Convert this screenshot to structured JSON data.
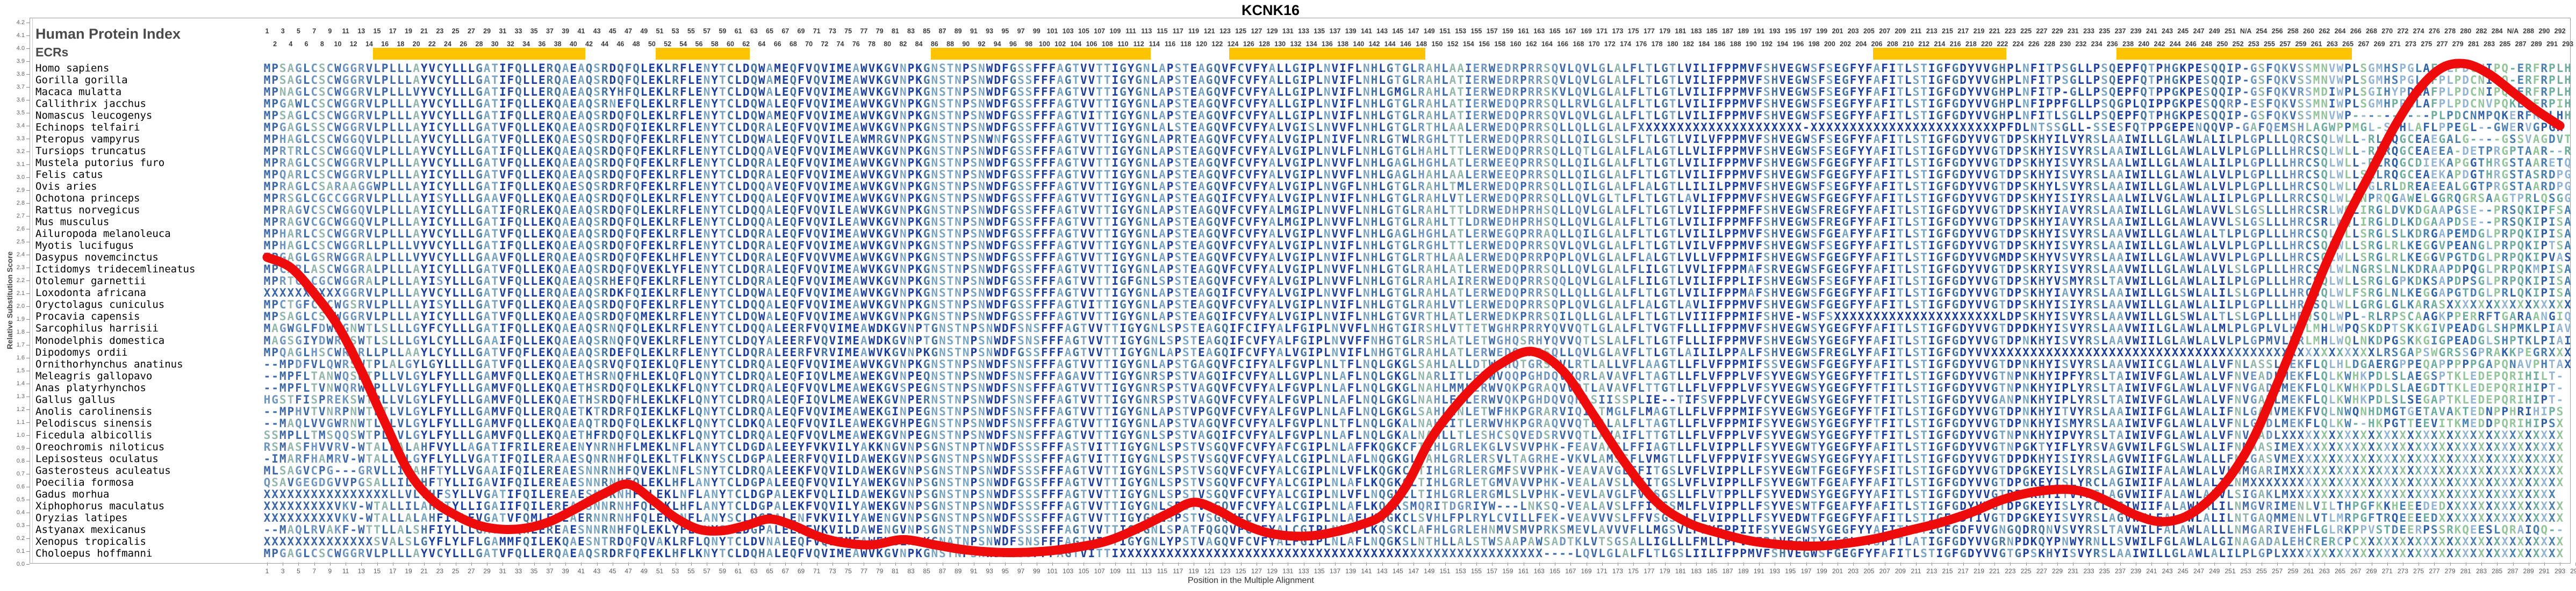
{
  "title": "KCNK16",
  "header": {
    "index_label": "Human Protein Index",
    "ecr_label": "ECRs"
  },
  "axes": {
    "y_label": "Relative Substitution Score",
    "x_label": "Position in the Multiple Alignment",
    "y_min": 0.0,
    "y_max": 4.2,
    "y_step": 0.1,
    "x_min": 1,
    "x_max": 295
  },
  "ruler": {
    "na_label": "N/A",
    "na_insert_column": 253,
    "na_replaced_number": 286,
    "total_columns": 294
  },
  "ecr_bars": [
    {
      "start": 15,
      "end": 41
    },
    {
      "start": 51,
      "end": 62
    },
    {
      "start": 86,
      "end": 113
    },
    {
      "start": 124,
      "end": 148
    },
    {
      "start": 206,
      "end": 222
    },
    {
      "start": 237,
      "end": 266
    }
  ],
  "colors": {
    "curve_red": "#ee0b0b",
    "ecr_yellow": "#fec301",
    "navy": "#1c3e9c",
    "steel": "#49779f",
    "pale_blue": "#7aa5c2",
    "tier1_dark": "#3b67a8",
    "tier1_mid": "#7096c0",
    "tier1_teal": "#93b7ab",
    "pastel": [
      "#93c49a",
      "#6fad9e",
      "#4a80b1",
      "#2f5fa6",
      "#93b4d2"
    ]
  },
  "chart_data": {
    "type": "line",
    "title": "KCNK16",
    "xlabel": "Position in the Multiple Alignment",
    "ylabel": "Relative Substitution Score",
    "xlim": [
      1,
      295
    ],
    "ylim": [
      0,
      4.25
    ],
    "grid": false,
    "series_name": "Relative Substitution Score",
    "points": [
      [
        1,
        2.38
      ],
      [
        4,
        2.3
      ],
      [
        7,
        2.1
      ],
      [
        10,
        1.85
      ],
      [
        13,
        1.5
      ],
      [
        16,
        1.1
      ],
      [
        19,
        0.72
      ],
      [
        22,
        0.5
      ],
      [
        25,
        0.38
      ],
      [
        28,
        0.3
      ],
      [
        31,
        0.27
      ],
      [
        34,
        0.28
      ],
      [
        37,
        0.33
      ],
      [
        40,
        0.42
      ],
      [
        44,
        0.55
      ],
      [
        47,
        0.62
      ],
      [
        50,
        0.5
      ],
      [
        53,
        0.36
      ],
      [
        56,
        0.27
      ],
      [
        59,
        0.26
      ],
      [
        62,
        0.3
      ],
      [
        65,
        0.35
      ],
      [
        68,
        0.3
      ],
      [
        71,
        0.22
      ],
      [
        74,
        0.17
      ],
      [
        78,
        0.15
      ],
      [
        82,
        0.19
      ],
      [
        86,
        0.15
      ],
      [
        90,
        0.11
      ],
      [
        95,
        0.09
      ],
      [
        100,
        0.1
      ],
      [
        104,
        0.13
      ],
      [
        108,
        0.18
      ],
      [
        112,
        0.28
      ],
      [
        116,
        0.4
      ],
      [
        119,
        0.48
      ],
      [
        122,
        0.42
      ],
      [
        125,
        0.32
      ],
      [
        128,
        0.25
      ],
      [
        131,
        0.22
      ],
      [
        134,
        0.22
      ],
      [
        137,
        0.25
      ],
      [
        140,
        0.3
      ],
      [
        143,
        0.38
      ],
      [
        146,
        0.6
      ],
      [
        149,
        0.95
      ],
      [
        152,
        1.2
      ],
      [
        155,
        1.4
      ],
      [
        158,
        1.55
      ],
      [
        162,
        1.65
      ],
      [
        166,
        1.5
      ],
      [
        170,
        1.15
      ],
      [
        174,
        0.78
      ],
      [
        178,
        0.48
      ],
      [
        182,
        0.32
      ],
      [
        186,
        0.24
      ],
      [
        190,
        0.18
      ],
      [
        194,
        0.15
      ],
      [
        198,
        0.14
      ],
      [
        202,
        0.16
      ],
      [
        206,
        0.2
      ],
      [
        210,
        0.26
      ],
      [
        214,
        0.32
      ],
      [
        218,
        0.4
      ],
      [
        222,
        0.5
      ],
      [
        226,
        0.56
      ],
      [
        230,
        0.58
      ],
      [
        233,
        0.55
      ],
      [
        236,
        0.47
      ],
      [
        239,
        0.38
      ],
      [
        242,
        0.33
      ],
      [
        245,
        0.36
      ],
      [
        248,
        0.48
      ],
      [
        251,
        0.68
      ],
      [
        254,
        0.98
      ],
      [
        257,
        1.4
      ],
      [
        260,
        1.85
      ],
      [
        263,
        2.3
      ],
      [
        266,
        2.7
      ],
      [
        269,
        3.05
      ],
      [
        272,
        3.4
      ],
      [
        275,
        3.68
      ],
      [
        278,
        3.85
      ],
      [
        281,
        3.88
      ],
      [
        284,
        3.8
      ],
      [
        287,
        3.66
      ],
      [
        290,
        3.52
      ],
      [
        293,
        3.4
      ]
    ]
  },
  "species": [
    "Homo sapiens",
    "Gorilla gorilla",
    "Macaca mulatta",
    "Callithrix jacchus",
    "Nomascus leucogenys",
    "Echinops telfairi",
    "Pteropus vampyrus",
    "Tursiops truncatus",
    "Mustela putorius furo",
    "Felis catus",
    "Ovis aries",
    "Ochotona princeps",
    "Rattus norvegicus",
    "Mus musculus",
    "Ailuropoda melanoleuca",
    "Myotis lucifugus",
    "Dasypus novemcinctus",
    "Ictidomys tridecemlineatus",
    "Otolemur garnettii",
    "Loxodonta africana",
    "Oryctolagus cuniculus",
    "Procavia capensis",
    "Sarcophilus harrisii",
    "Monodelphis domestica",
    "Dipodomys ordii",
    "Ornithorhynchus anatinus",
    "Meleagris gallopavo",
    "Anas platyrhynchos",
    "Gallus gallus",
    "Anolis carolinensis",
    "Pelodiscus sinensis",
    "Ficedula albicollis",
    "Oreochromis niloticus",
    "Lepisosteus oculatus",
    "Gasterosteus aculeatus",
    "Poecilia formosa",
    "Gadus morhua",
    "Xiphophorus maculatus",
    "Oryzias latipes",
    "Astyanax mexicanus",
    "Xenopus tropicalis",
    "Choloepus hoffmanni"
  ],
  "sequences": [
    "MPSAGLCSCWGGRVLPLLLAYVCYLLLGATIFQLLERQAEAQSRDQFQLEKLRFLENYTCLDQWAMEQFVQVIMEAWVKGVNPKGNSTNPSNWDFGSSFFFAGTVVTTIGYGNLAPSTEAGQVFCVFYALLGIPLNVIFLNHLGTGLRAHLAAIERWEDRPRRSQVLQVLGLALFLTLGTLVILIFPPMVFSHVEGWSFSEGFYFAFITLSTIGFGDYVVGHPLNFITPSGLLPSQEPFQTPHGKPESQQIP-GSFQKVSSMNVWPLSGMHSPGLAFPLPDCNIPQ-ERFRPLH",
    "MPSAGLCSCWGGRVLPLLLAYVCYLLLGATIFQLLERQAEAQSRDQFQLEKLRFLENYTCLDQWAMEQFVQVIMEAWVKGVNPKGNSTNPSNWDFGSSFFFAGTVVTTIGYGNLAPSTEAGQVFCVFYALLGIPLNVIFLNHLGTGLRAHLATIERWEDRPRRSQVLQVLGLALFLTLGTLVILIFPPMVFSHVEGWSFSEGFYFAFITLSTIGFGDYVVGHPLNFITPSGLLPSQEPFQTPHGKPESQQIP-GSFQKVSSMNVWPLSGMHSPGLAFPLPDCNIPQ-ERFRPLH",
    "MPNAGLCSCWGGRVLPLLLVYVCYLLLGATIFQLLERQAEAQSRYHFQLEKLRFLENYTCLDQWALEQFVQVIMEAWVKGVNPKGNSTNPSNWDFGSSFFFAGTVVTTIGYGNLAPSTEAGQVFCVFYALLGIPLNVIFLNHLGMGLRAHLATIERWEDRPRRSKVLQVLGLALFLTLGTLVILIFPPMVFSHVEGWSFSEGFYFAFITLSTIGFGDYVVGHPLNFITP-GLLPSQEPFQTPPGKPESQQIP-GSFQKVRSMDIWPLSGIHYPDLAFPLPDCNIPQKERFRPLH",
    "MPGAWLCSCWGGRVLPLLLAYVCYLLLGATIFQLLEKQAEAQSRNEFQLEKLRFLENYTCLDQWALEQFVQVIMEAWVKGVNPKGNSTNPSNWDFGSSFFFAGTVVTTIGYGNLAPSTEAGQVFCVFYALLGIPLNVIFLNHLGTGLRAHLATIERWEDQPRRSQLLRVLGLALFLTLGTLVILIFPPMVFSHVEGWSFSEGFYFAFITLSTIGFGDYVVGHPLNFIPPFGLLPSQGPLQIPPGKPESQQRP-ESFQKVSSMNIWPLSGMHPPGLAFPLPDCNVPQKERFRPIH",
    "MPSAGLCSCWGGRVLPLLLAYVCYLLLGATIFQLLERQAEAQSRDQFQLEKLRFLENYTCLDQWAMEQFVQVIMEAWVKGVNPKGNSTNPSNWDFGSSFFFAGTVITTIGYGNLAPSTEAGQVFCVFYALLGIPLNVIFLNHLGTGLRAHLATIERWEDQPRRSQVLQVLGLALFLTLGTLVILIFPPMVFSHVEGWSFSEGFYFAFITLSTIGFGDYVVGHPLNFITLSGLLPSQEPFQTPHGKPESQQIP-GSFQKVSSMNVWP----------PLPDCNMPQKERFRPLHH",
    "MPGAGLSSCWGGRVLPLLLAYICYLLLGATVFQLLEKQAEAQSRDQFQIEKLRFLENYTCLDQRALEQFVQVIMEAWVKGVNPKGNSTNPSNWDFGSSFFFAGTVVTTIGYGNLALSTEAGQVFCVFYALVGISLNVVFLNHLGTGLRTHLAALERWEDQPRRSQLLQLLGLALFXXXXXXXXXXXXXXXXXXXXX-XXXXXXXXXXXXXXXXXXXXXXXXPFDLNTSSGLL-SSESFQTPPGEPENQQVP-GAFQEMSHLAGWPPMGL-SPHLAFLPPEGL--GWERVGPGH",
    "MPHAGLCSCWGGQVLPLLLAYVCYLLLGATVFQLLEKQAESQSRDQFQFEKLRFLENYTCLDQWALEQFVQVILEAWMRGVNPKGNSTNPSNWNFGSSFFFAGTVVTTIGYGNLAPRTEAGQVFCVFYALVGIPLNIVFLNRLGTWLRGHLTTLERWEDQPRRSQLLQILGLSLFLTLGTLVILVFPPMVFSHVEGWSFSEGFYFAFITLSTIGFGDYVVGTDPSKHYILVYRSLAAIWILLGLAWLALILPLGPLLLQRCSQLWLL-RLRQGCEAEGALG----GSSVAGDVT",
    "MPRTRLCSCWGGQVLPLLLAYVCYLLLGATIFQLLEKQAEAQSRDQFQFEKLRFLENYTCLDQQAVEQFVQVIMEAWVKGVNPKGNSTNPSNWDFGSSFFFAGTVVTTIGYGNLAPSTEAGQVFCVFYALVGIPLNVLFLNHLGTGLHAHLTTLERWEDQPRRSQLLQTLGLALFLALGTLLVLIFPPMVFSHVEGWSFSEGFYYAFITLSTIGFGDYVVGTDPSKHYISVYRSLAAIWILLGLAWLALVLPLGPLLLHRCSQLWLL-RLRQGCEAEEA-DETPRGPTAAR--R",
    "MPRAGLCSCWGGRVLPLLLAYVCYLLLGATVFQLLEKQAEAQSRDQFQFEKLRFLENYTCLDQRALEQFVQVIMEAWVKGVNPKGNSTNPSNWDFGSSFFFAGTVVTTIGYGNLAPSTEAGQVFCVFYALVGIPLNVVFLNHLGAGLHGHLATLERWEEQPRRSQLLQILGLALFLTLGTLVILIFPPMVFSHVEGWSFGEGFYFAFITLSTIGFGDYVVGTDPSKHYISVYRSLAALWILLGLAWLALILPLGPLLLHRCSQLWLL-RLRQGCDIEKAPGGTHRGSTAARETQ",
    "MPQARLCSCWGGRVLPLLLAYICYLLLGATVFQLLEKQAEAQSRDQFQFEKLRFLENYTCLDQRALEQFVQVIMEAWVKGVNPKGNSTNPSNWDFGSSFFFAGTVVTTIGYGNLAPSTEAGQVFCVFYALVGIPLNVVFLNHLGAGLHAHLAALERWEEQPRRSQLLQILGLALFLTLGTLVILIFPPMVFSHVEGWSFGEGFYFAFITLSTIGFGDYVVGTDPSKHYISVYRSLAAIWILLGLAWLALVLPLGPLLLHRCSQLWLLSRLRQGCEAEKAPDGTHRGSTASRDPG",
    "MPRAGLCSARAAGGWPLLLAYICYLLLGATIFQLLEKQAESQSRDRFQFEKLRFLENYTCLDQQAVEQFVQVIMEAWVKGVNPKGNSTNPSNWDFGSSFFFAGTVVTTIGYGNLAPSTEAGQVFCVFYALVGIPLNVGFLNHLGTGLRAHLTMLERWEDQPRRSQLLQILGLALFLALGTLLILILPPMVFSHVEGWSFSEGFYFAFITLSTIGFGDYVVGTDPSKHYLSVYRSLAAIWILLGLAWLALVLPLGPLLLHRCSQLWLL-GLRLDREAEEALGGTPRGSTAARDPG",
    "MPRSGLCGCCGGRVLPLLLAYISYLLLGAAVFQLLEKQAEAQSRDQFQLEKLRFLENYTCLDQQALEQFVQVIMEAWVKGVNPKGNSTNPSNWDFGSSFFFAGTVVTTIGYGNLAPSTEAGQIFCVFYALVGIPLNVIFLNHLGTGLRAHLVTLERWEDQPRRSQLLQVLGLTLFLTLGTLAVLIFPPMVFSHVEGWSFGEGFYFAFITLSTIGFGDYVVGTDPSKHYISIYRSLAALWILVGLAWLALILPLGPLLLRRCSQLWLLNPRQGAWELGGRQGRSAAGTPRLQSGG",
    "MPRAGVCSCWGGQVLPLLLAYICYLLLGATIFQRLEKQAEAQSRDQFQLEKLRFLENYTCLDQQALEQFVQVILEAWVKGVNPKGNSTNPSNWDFGSSFFFAGTVVTTIGYGNLAPSTEAGQVFCVFYALMGIPLNVVFLNHLGTGLRAHLTTLDRWEDHPRHSQLLQVLGLALFLTLGTLVILIFPPMFFSHVEGWSFREGFYFAFITLSTIGFGDYVVGTDPSKHYIAVYRSLAAIWILLGLAWLAVVLSLGSLLLHRCSRLWQLIRGLDVKDGAAPGSE--PRSQKIPFSA",
    "MPRAGVCGCWGGQVLPLLLAYICYLLLGATIFQLLEKQAEAQSRDQFQLEKLRFLENYTCLDQQALEQFVQVILEAWVKGVNPKGNSTNPSNWDFGSSFFFAGTVVTTIGYGNLAPSTEAGQVFCVFYALMGIPLNVVFLNHLGTGLRAHLTTLDRWEDHPRHSQLLQVLGLALFLTLGTLVILIFPPMFFSHVEGWSFREGFYFAFITLSTIGFGDYVVGTDPSKHYIAVYRSLAAIWILLGLAWLAVVLSLGSLLLHRCSRLWQLIRGLDLKDGAAPDSE--PRSQKIPISA",
    "MPHARLCSCWGGRVLPLLLAYVCYLLLGATVFQLLEKQAEAQSRDQFQFEKLRFLENYTCLDQRALEQFVQVIMEAWVKGVNPKGNSTNPSNWDFGSSFFFAGTVVTTIGYGNLAPSTEAGQVFCVFYALVGIPLNVVFLNHLGAGLHGHLATLERWEGQPRRAQLLQILGLALFLTLGTLVILILPPMVFSHVEGWSFGEAFYFAFITLSTIGFGDYVVGTDPSKHYISVYRSLAAVWILLGLAWLALTLPLGPLLLHRCSQLWLLSRGLSLKDRGAPEMDGLPRPQKIPISA",
    "MPHAGLCSCWGGRLLPLLLVYVCYLLLGATIFQLLEKQAEAQSRDQFQFEKLRFLENYTCLDQRALEQFVQVIMEAWVKGVNPKGNSTNPSNWDFGSSFFFAGTVVTTIGYGNLAPSTEAGQVFCVFYALVGIPLNVIFLNHLGTGLRGHLTTLERWEDQPRRSQVLQVLGLALFLTLGTLVILVFPPMVFSHVEGWSFSEGFYFAFITLSTIGFGDYVVGTDPSKHYISVYRSLAAIWILLGLAWLALVLPLGPLLLHRCSQLWLLSRGLRLKEGGVPEANGLPRPQKIPTSA",
    "MPGAGLGSRWGGRALPLLLVYVCYLLLGAAVFQLLERQAEAQSRDQFQFEKLHFLENYTCLDQRALEQFVQVVMEAWVKGVNPKGNSTNPSNWDFGSSFFFAGTVVTTIGYGNLAPSTEAGQVFCVFYALVGIPLNVIFLNHLGTGLRTHLAALERWEDQPRRPQPLQVLGLALFLALGTLVLLVFPPMIFSHVEGWSFGEGFYFAFITLSTIGFGDYVVGMDPSKHYVSVYRSLAAIWILLGLAWLAVVLPLGPLLLHRCSQLWLLSRGLRLKEGGVPGTDGLPRPQKIPVAS",
    "MPCARLASCWGGRALPLLLAYICYLLLGATVFQLLEKQAEAQSRDQFQVEKLYFLENYTCLDQRALEQFVQVIMEAWVKGVNPKGNSTNPSNWDFGSSFFFAGTVVTTIGYGNLAPSTEAGQVFCVFYALVGIPLNVVFLNHLGTGLRAHLATLERWEDQPRRSQLLQVLGLALFLILGTLVVLIFPPMAFSRVEGWSFGEGFYFAFITLSTIGFGDYVVGTDPSKRYISVYRSLAAVWILLGLAWLALVLSLGPLLLHRCSQLWLNGRSLNLKDRAAPDPQGLPRPQKMPISA",
    "MPRTGLCGCWGGRALPLLLAYISYLLLGATVFQLLEKQAEAQSRHEFQFEKLRFLENYTCLDQRALEQFVQVIMEAWVKGVNPKGNSTNPSNWDFGSSFFFAGTVVTTIGFGNLSPSTEAGQVFCVFYALVGIPLNVVFLNHLGTGLRAHLAIRERWEDQPRRSQQLQVLGLALFLILGTLVILIFPPLIFSHVEGWSFSEGFYFAFITLSTIGFGDYVVGTDPSKHYVSMYRSLTAVWILLGLAWLALILPLGPLLLHRCSQLWLLSRGLGPKDKSAPDPSGLPRPQKIPISA",
    "XXXXXXXXXXGGRVLPLLLAYVCYLLLGATVFQLLERQAEAQSRDKFQIEKLRFLENYTCLDQWALEQFVQVIMEAWVKGVNPKGNSTNPSNWDFGSSFFFAGTVVTTIGYGNLAPSTEAGQIFCVFYALVGIPLNVVFLNHLGTGLRAHLATLERWEDQPRRSQLLQLLGLALFLTLGTLVILIFPPMAFSHVEGWSFGEGFYFAFITLSTIGFGDYVVGTDPSKHYIAVYRSLAAIWILLGLSWLALILSLGPLLLHRCSQLWLFSRGLNLKEGGAPGTDGLPRLQKIPISA",
    "MPCTGFCSCWGSRVLPLLLAYISYLLLGATVFQLLEKQAEAQSRDQFQFEKLRFLENYTCLDQQALEQFVQVIMEAWVKGVNPKGNSTNPSNWDFGSSFFFAGTVITTIGYGNLAPSTEAGQVFCVFYALVGIPLNVIFLNHLGTGLRAHLVTLERWEDQPRRSQPLQVLGLALFLALGTLAVLIFPPMVFSHVEGWSFGEGFYFAFITLSTIGFGDYVVGTDPSKHYISIYRSLAAVWILLGLAWLALILPLGPLLLHRCSQLWLLGRGLGLKARASXXXXXXXXXXXXXXXX",
    "MPSAGLCSCWGGRVLPLLLAYICYLLLGATVFQLLEKQAEAQSRDQFQMEKLRFLENYTCLDQWALEQFVQVIMEAWVKGVNPKGNSTNPSNWDFGSSFFFAGTVVTTIGYGNLAPSTEAGQIFCVFYALVGIPLNVIFLNHLGTGVRTHLATLERWEDKPRRSQILQLLGLALFLTLGTLVIIIFPPMIFSHVE-WSFSXXXXXXXXXXXXXXXXXXXXXLDPSKHYISVYRSLAAVWILLGLSWLALTLSLGPLLLHRQSQLWPL-RLRPSCAAGKPPERRFTGARAANGIQ",
    "MAGWGLFDWRGNWTLSLLLGYFCYLLLGATIFQLLEKQAEAQSRNQFQLEKLRFLENYTCLDQQALEERFVQVIMEAWDKGVNPTGNSTNPSNWDFSNSFFFAGTVVTTIGYGNLSPSTEAGQIFCIFYALFGIPLNVVFLNHGTGIRSHLVTTETWGHRPRRYQVVQTLGLALFLTVGTFLLLIFPPMVFSHVEGWSYGEGFYFAFITLSTIGFGDYVVGTDPDKHYISVYRSLAAVWIILGLAWLALMLPLGPLVLHQLMHLWPQSKDPTSKKGIVPEADGLSHPMKLPIAV",
    "MAGSGIYDWRGSWTLSLLLGYLCYLLLGAAIFQLLEKQAEAQSRNQFQVEKLRFLENYTCLDQYALEERFVQVIMEAWDKGVNPTGNSTNPSNWDFSNSFFFAGTVVTTIGYGNLSPSTEAGQIFCVFYALFGIPLNVVFFNHGTGLRSHLATLETWGHQSRHYQVVQTLSLALFLTLGTFLLLIFPPMVFSHVEGWSYGEGFYFAFITLSTIGFGDYVVGTDPNKHYISVYRSLAAVWIILGLAWLALVLPLGPMVLHRLMHLWQLNKDPGSKKGIGPEADGLSHPTKLPIAI",
    "MPQAGLHSCWRGRLLPLLAAYLCYLLLGATVFQFLEKQAEAQSRDEFQLEKLRFLENYTCLDQRALEERFVRVIMEAWVKGVNPKGNSTNPSNWDFGSSFFFAGTVVTTIGYGNLAPSTEAGQIFCVFYALVGIPLNVIFLNHGTGLRAHLATLERWEDQPRRSQLLQVLGLAVFLTLGTLAILILPPALFSHVEGWSFREGLYFAFITLSTIGFGDYVVXXXXXXXXXXXXXXXXXXXXXXXXXXXXXXXXXXXXXXXXXXXXXXXXXLRSGAPSWGRSSGPRAKKPEGRXXX",
    "--MPDFVLQWRSWTPLALGYLGYLLLLGATVFQLLEKQAEAQSRVQFQIEKLQFLENYTCLDRQALEQFVQVIMEAWVKGVNPKGNSTNPSNWDFSNSFFFAGTVVTTIGYGNLAPSTGAGQVFCIFYALFGVPLNLTFLNQLGKGLSAHLALLDTWGHQTGRSRVLRTLALLVFLAAGTLLFLVFPPMIFSSVEGWSFGEGFYFAFITLSTIGFGDYVVGTDPNKHYISVYRSLAAVWIICGLAWLALVFNLASSLVEKFLQLHLDGAERGPPEQAPPPPPGAPQNAVPHTAX",
    "--MPFLTANWQSWTPLLVLGYLFYLLLGAMVFQLLEKQAETHSRNQFHLEKLQFLQNYTCLDRQALEQFIQVLMEAWEKGVNPEQNSTNPSNWDFSNSFFFAGAVVTTIGYGNRSPSTVAGQIFCVFYALLGVPLNLAFLNQLGKGLNARLITLERWVQQPGHDQVVQRLAVAVFLTAGTLLFLVFPPLVFSYVEGWSYGEGFYFTFITLSTIGFGDYVVGTNPNKHYIPFYRSLTAIWIVFGLAWLALVFNVEADLMEKFLQLKWHKPDLSLAEGSPTKLEDEPQRIHILT-",
    "--MPFLTVNWQRWTPLLVLGYLFYLLLGAMVFQLLEKQAETHSRDQFQLEKLKFLQNYTCLDRQALEQFVQVLMEAWEKGVSPEGNSTNPSNWDFSNSFFFAGTVVTTIGYGNRSPSTVAGQVFCVFYALFGVPLNLAFLNQLGKGLNAHLMMLERWVQKPGRAQVVQTLAVAVFLTTGTLLFLVFPPLVFSYVEGWSYGEGFYFTFITLSTIGFGDYVVGTNPNKHYIPLYRSLTAIWIVFGLAWLALVFNVGADLMEKFLQLKWHKPDLSLAEGDTTKLEDEPQRIHIPT-",
    "HGSTFISPREKSWTPLLVLGYLFYLLLGAMVFQLLEKQAETHSRDQFHLEKLKFLQNYTCLDRQALEQFIQVLMEAWEKGVNPERNSTNPSNWDFSNSFFFAGTVVTTIGYGNRSPSTVAGQVFCVFYALFGVPLNLAFLNQLGKGLNAHLFTLERWVQKPGHDQVQHASIISSPLIE--TIFSVFPPLVFCYVEGWSYGEGFYFTFITLSTIGFGDYVVGANPNKHYIPLYRSLTAIWIVFGLAWLALVFNVGADLMEKFLQLKWHKPDLSLSEGAPTKLEDEPQRIHIPT-",
    "--MPHVTVNRPNWTLTLVLGYLFYLLLGAMVFQLLERQAETKTRDRFQIEKLKFLQNYTCLDRQALEQFVQVIMEAWEKGINPEGNSTNPSNWDFSNSFFFAGTVVTTIGYGNLAPSTVPGQVFCVFYALFGVPLNLAFLNQLGKGLSAHLINLETWFHKPGRARVIQILTMGLFLMAGTLLFLVFPPMIFSYVEGWSYGEGFYFTFITLSTIGFGDYVVGTDPNKHYITVYRSLAAIWIIFGLAWLALIFNLGANVMEKFVQLNWQNHDMGTGETAVAKTEDNPPHRIHIPS",
    "--MAQLVVGWRNWTLVLVLGYLFYLLLGAMVFQLLEKQAEAQTRDQFQLEKLKFLQNYTCLDKQALEQFVQVILEAWEKGVHPEGNSTNPSNWDFSNSFFFAGTVVTTIGYGNLAPSTVAGQVFCVFYALFGVPLNLTFLNQLGKALNAHLITLERWVHKPGRAQVVQTLALALFLTAGTLLFLVFPPMIFSYVEGWSYGEGFYFTFITLSTIGFGDYVVGTDPNKHYISMYRSLAAIWIVFGLAWLALVFNLGADLMEKFLQLKW--HKPGTTEEVITKMEDDPQRIHIPSX",
    "SSMPLLTMSQQSWTPLLVLGYLFYLLLGAMVFQLLEKQAETHFRDQFQLEKLKFLQNYTCLDRQALEQFVQVLMEAWEKGVNPEGNSTNPSNWDFSNSFFFAGTVVTTIGYGNLSPSTVAGQIFCVFYALFGVPLNLAFLNQLGKALNAHLLTLESHCSQVEDSRVVQTLAVAIFLTTGTLLFLVFPPLVFSYVEGWSYGEGFYFTFITLSTIGFGDYVVGTNPNKHYIPVYRSLTAIWIVFGLAWLALVFNVGADLXXXXXXXXXXXXXXXXXXXXXXXXXXXXXXXXXXXX",
    "RSMASFHVVRV-WTALLALAHFVYLLAGATIFRILEREAENYNRNHFLMEKLNFLANYTCLDGDALEEYFVKVILYAKKNGVNPSGNSTNPTNWDFSSSFFFASTVITTIGYGNLSPSTVSGQVFCVFYAFCGIPLNLAFFKQGKCFTIHLGRLEKGLVSVVPHK-FEAVAASLFFIAGTLLFLVIPPLLFSYVEGWTYGEGFYFAFITLSTIGFGDYVVGTNPGKTYIFLYRSVAGVWILFGLSWLALIFNMAASIMEXXXXXXXXXXXXXXXXXXXXXXXXXXXXXXXXXX",
    "-IMARFHAMRV-WTALLVLGYFLYLLVGATIFQILERAAESQNRNHFQLEKLTFLKNYSCLDGPALEERFVQVILDAWEKGVNPSGNSTNPSNWDFSSSFFFAGTVITTIGYGNLSPSTVSGQVFCVFYALCGIPLNLAFLNQGKGLTAHLGRLERSVLTAGRHE-VKVLAMSSFLVMGTLLFLVFPPVIFSYVEGWSYGEGFYYAFITLSTIGFGDYVVGTDPDKHYISIYRSLAGVWIIFGLAWLALLFNLGASVMEXXXXXXXXXXXXXXXXXXXXXXXXXXXXXXXXXX",
    "MLSAGVCPG---GRVLLIVAHFTYLLVGAAIFQILEREAESNNRNHFQVEKLNFLSNYTCLDRQALEEKFVQVILDAWEKGVNPSGNSTNPSNWDFSSSFFFAGTVVTTIGYGNLSPSTVSGQVFCVFYALCGIPLNLVFLKQGKCLTIHLGRLERGMFSVVPHK-VEAVAVGLFFITGSLVFLVIPPLLFSYVEGWTFGEGFYFSFITLSTIGFGDYVVGTDPGKEYISLYRSLAGIWIIFALAWLALVLNMGARIMXXXXXXXXXXXXXXXXXXXXXXXXXXXXXXXXXXX",
    "QSAVGEGDGVVPGSALLILAHFTYLLIGAVIFQILEREAESNNRNHFQLEKLHFLANYTCLDGPALEEQFVQVILYAWEKGVNPSGNSTNPSNWDFGSSFFFAGTVVTTIGYGNLSPSTVSGQVFCVFYALCGIPLNLAFLKQGKCLTIHLGRLETGMVAVVPHK-VEALAVSLFFITGSLVFLVIPPLLFSYVEGWTFGEAFYFAFITLSTIGFGDYVVGTDPGKEYISLYRCLAGIWIIFALAWLALILNMXXXXXXXXXXXXXXXXXXXXXXXXXXXXXXXXXXXXXXXX",
    "XXXXXXXXXXXXXXXXLLVLVHFSYLLVGATIFQILEREAESNNRNHFQLEKLNFLANYTCLDGPALEKFVQLILDAWEKGVNPSGNSTNPSNWDFSSSFFFAGTVVTTIGYGNLSPSTVSGQVFCVFYALCGIPLNLVFLNQGKCLTIHLGRLERGMLSLVPHK-VEVLAVGLFVASGSLLFLVTPPLLFSYVEDWSYGEGFYYAFITLSTIGFGDYVVGTDPDKHYITVYRSLAGVWIIFALAWLALVLSIGAKLMXXXXXXXXXXXXXXXXXXXXXXXXXXXXXXXXXX",
    "XXXXXXXXXVKV-WTALLILAHFTYLLIGAIIFQILEREAFSNNRNHFQLEKLHFLANYTCLDGPALEKFVQVILYAWEKGVNPSGNSTNPSNWDFSSSFFFAGTVVTTIGYGNLSPSTVSGQVFCVFYALCGIPLNLAFLKQGKSMQRITDGRIYW---LNKSQ-VEALAVSLFFITGSMLFLVIPPLLFSYVESWTFGEAFYFAFITLSTIGFGDYVVGTDPGKEYISLYRCLAGIWIIFALAWLALILNMGVRIMENLVILTHPGFKKHEEEDEDXXXXXXXXXXXXXXX",
    "XXXXXXXXXVKV-WTALLALAHFIYLFVGATVFQMLEREAERNNRNHFQLEKLNFLANYSCLDGPALENFVKVILYAWENGVNPSGNSTNPSNWDFSSSFFFAGTVVTTIGYGNLSPSTVSGQVFCVFYALFGIPLNLAFLKQGKCLSVHLFPLRYLCVILLFEK-VEAVVVSLFFVSGSLLFLVIPPLLFSYVEDWTFGEGFYFAFITLSTIGFGDYIVGTDPGKEYISVYRSLAGVWILFALAWLALILNTGAQMMENLVTLMRPGFTRQEEEEDXXXXXXXXXXXXXXXX",
    "--MAQLRVAKF-WTTLLALSHFIYLLLGATVFQHLEREAESNNRNHFQLEKLYFLANYSCLDGPALEEKFVKVILDAWENGVNPSGNSTNPSNWDFSSSFFFAGTVVTTIGYGNLSPATFQGQVFCVFYALCGIPLNLAFLKQSKCLAFHLGRLEHNMVSMVPRKSMEVLAVVVFLLMGSVLFLVFPPIIFSYVEGWSYGEGFYYAFITLSTIGFGDFVVGNGQDRQNVSVYRSLTAVWILFALAWLALLLNMGARIVEHFLGLRKPPVSTDEERPSSRKQEESLQRAIQQ--",
    "XXXXXXXXXXXXXXSVALSLGYFLYLFLGAMMFQILEKQAESNTRDQFQVAKLRFLQNYTCLDVNALEQFVQIIMEAWEKGLNPKGNATNPSNWDFSNSFFFAGTVITTIGYGNLYPSTVAGQVFCVFYALFGIPLNLAFLNQGKSLNTHLLALSTWSAAPAWSADTKLVTSGSALLIGLLLFMLLPPVLFRAVEGWTYGEGLYYSFITLATIGFGDYVVGRNPDKQYPNWYRNLLSVWILFGLAWLALGINAGADALEHCRERCPCXXXXXXXXXXXXXXXXXXXXXXXXXX",
    "MPGAGLCSCWGGRVLPLLLAYVCYLLLGATVFQLLERQAEAQSRDRFQFEKLHFLKNYTCLDQHALEQFVQVIMEAWVKGVNPKGNSTNPSNWDFGSSFFFAGTVITTIXXXXXXXXXXXXXXXXXXXXXXXXXXXXXXXXXXXXXXXXXXXXXXXXXXXXXX----LQVLGLALFLTLGSLIILIFPPMVFSHVEGWSFGEGFYFAFITLSTIGFGDYVVGTGPSKHYISVYRSLAAIWILLGLAWLALILPLGPLXXXXXXXXXXXXXXXXXXXXXXXXXXXXXXXXXXXX"
  ]
}
